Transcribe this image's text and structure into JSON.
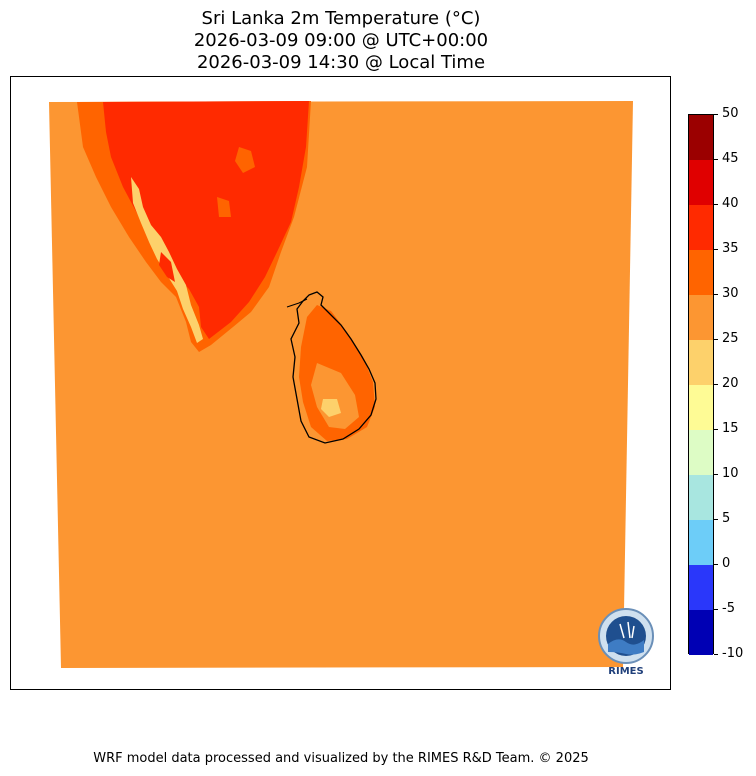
{
  "title": {
    "line1": "Sri Lanka 2m Temperature (°C)",
    "line2": "2026-03-09 09:00 @ UTC+00:00",
    "line3": "2026-03-09 14:30 @ Local Time"
  },
  "colorbar": {
    "levels": [
      "50",
      "45",
      "40",
      "35",
      "30",
      "25",
      "20",
      "15",
      "10",
      "5",
      "0",
      "-5",
      "-10"
    ],
    "colors": [
      "#9b0000",
      "#e00000",
      "#ff2a00",
      "#ff6400",
      "#fc9632",
      "#fdd16b",
      "#fefb95",
      "#ddfcc5",
      "#a8e6e0",
      "#6dcdf8",
      "#2a37fa",
      "#0000b4"
    ]
  },
  "map": {
    "ocean_color": "#fc9632",
    "land_hot_color": "#ff2a00",
    "land_warm_color": "#ff6400",
    "highland_color": "#fdd16b",
    "coastline_color": "#000000"
  },
  "logo": {
    "text": "RIMES"
  },
  "footer": "WRF model data processed and visualized by the RIMES R&D Team. © 2025"
}
